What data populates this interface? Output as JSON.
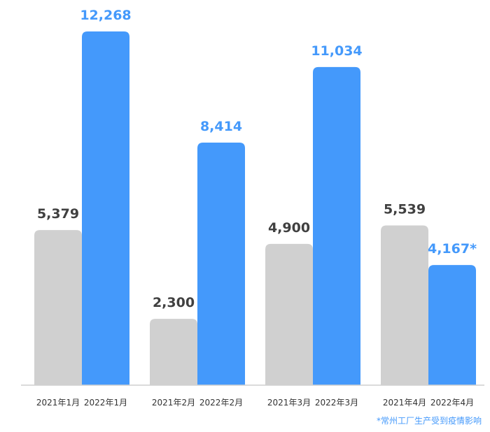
{
  "chart_data": {
    "type": "bar",
    "categories": [
      "1月",
      "2月",
      "3月",
      "4月"
    ],
    "series": [
      {
        "name": "",
        "color": "#d0d0d0",
        "label_color": "#404040",
        "values": [
          5379,
          2300,
          4900,
          5539
        ],
        "value_labels": [
          "5,379",
          "2,300",
          "4,900",
          "5,539"
        ],
        "tick_labels": [
          "2021年1月",
          "2021年2月",
          "2021年3月",
          "2021年4月"
        ]
      },
      {
        "name": "",
        "color": "#4499fb",
        "label_color": "#4499fb",
        "values": [
          12268,
          8414,
          11034,
          4167
        ],
        "value_labels": [
          "12,268",
          "8,414",
          "11,034",
          "4,167*"
        ],
        "tick_labels": [
          "2022年1月",
          "2022年2月",
          "2022年3月",
          "2022年4月"
        ]
      }
    ],
    "title": "",
    "xlabel": "",
    "ylabel": "",
    "ylim": [
      0,
      12268
    ],
    "grid": false,
    "legend": "none",
    "annotations": [
      {
        "text": "*常州工厂生产受到疫情影响",
        "color": "#4499fb",
        "position": "bottom-right"
      }
    ]
  }
}
